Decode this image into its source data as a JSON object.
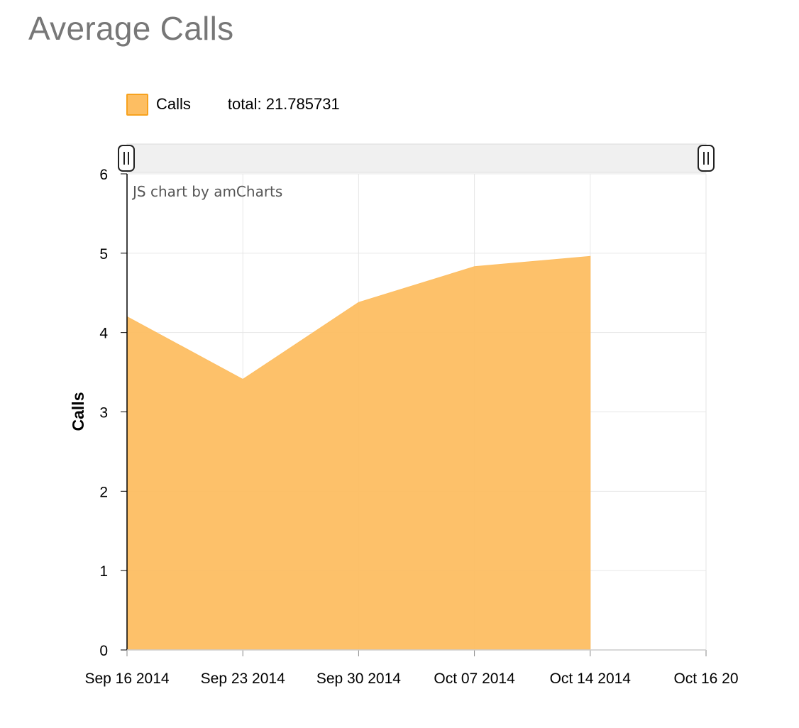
{
  "page": {
    "title": "Average Calls"
  },
  "legend": {
    "label": "Calls",
    "total_label": "total: 21.785731"
  },
  "credit": "JS chart by amCharts",
  "colors": {
    "series": "#fdbe62",
    "series_border": "#f7a21e",
    "grid": "#e6e6e6",
    "axis": "#000000",
    "scrollbar": "#f0f0f0"
  },
  "chart_data": {
    "type": "area",
    "title": "",
    "ylabel": "Calls",
    "xlabel": "",
    "x_ticks": [
      "Sep 16 2014",
      "Sep 23 2014",
      "Sep 30 2014",
      "Oct 07 2014",
      "Oct 14 2014",
      "Oct 16 20"
    ],
    "y_ticks": [
      "0",
      "1",
      "2",
      "3",
      "4",
      "5",
      "6"
    ],
    "ylim": [
      0,
      6
    ],
    "grid": true,
    "legend": "top-left",
    "scrollbar": true,
    "series": [
      {
        "name": "Calls",
        "x": [
          "Sep 16 2014",
          "Sep 23 2014",
          "Sep 30 2014",
          "Oct 07 2014",
          "Oct 14 2014"
        ],
        "values": [
          4.2,
          3.41,
          4.38,
          4.83,
          4.96
        ]
      }
    ]
  }
}
